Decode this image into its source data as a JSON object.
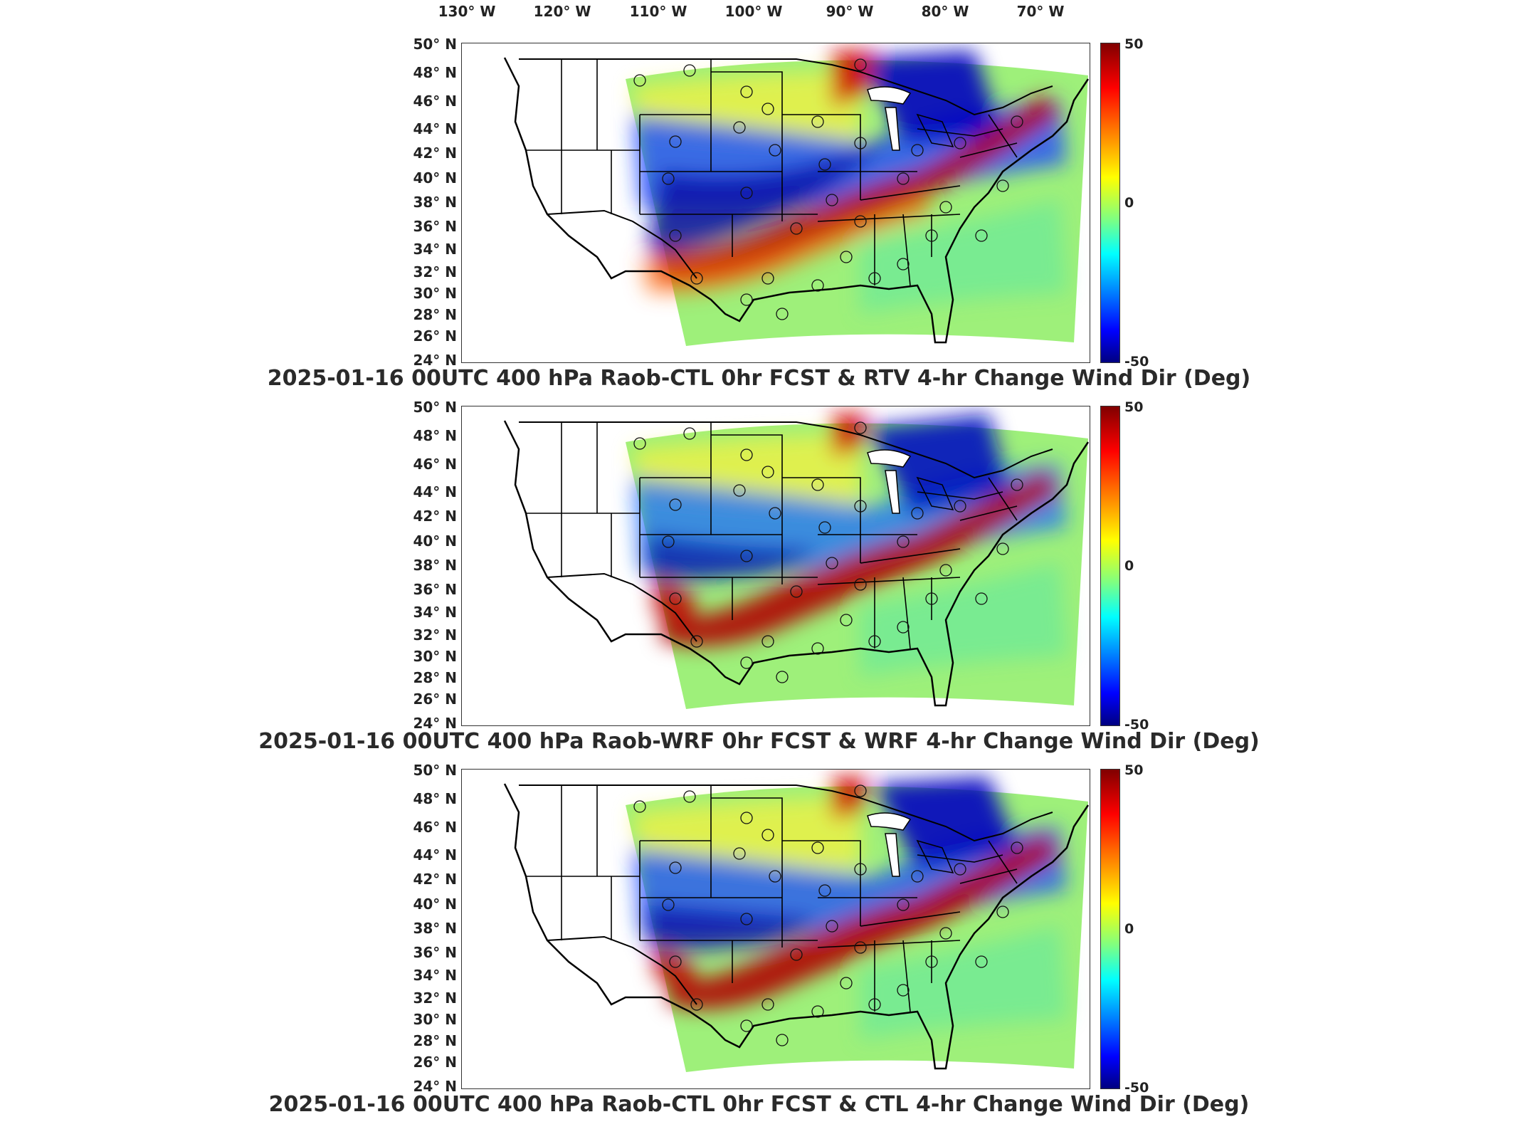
{
  "longitude_labels": [
    "130° W",
    "120° W",
    "110° W",
    "100° W",
    "90° W",
    "80° W",
    "70° W"
  ],
  "latitude_labels": [
    "50° N",
    "48° N",
    "46° N",
    "44° N",
    "42° N",
    "40° N",
    "38° N",
    "36° N",
    "34° N",
    "32° N",
    "30° N",
    "28° N",
    "26° N",
    "24° N"
  ],
  "colorbar": {
    "max_label": "50",
    "mid_label": "0",
    "min_label": "-50",
    "colors": [
      "#800000",
      "#ff0000",
      "#ff8000",
      "#ffff00",
      "#80ff80",
      "#00ffff",
      "#0080ff",
      "#0000ff",
      "#000080"
    ]
  },
  "panels": [
    {
      "title": "2025-01-16 00UTC 400 hPa Raob-CTL 0hr FCST & RTV 4-hr Change Wind Dir (Deg)"
    },
    {
      "title": "2025-01-16 00UTC 400 hPa Raob-WRF 0hr FCST & WRF 4-hr Change Wind Dir (Deg)"
    },
    {
      "title": "2025-01-16 00UTC 400 hPa Raob-CTL 0hr FCST & CTL 4-hr Change Wind Dir (Deg)"
    }
  ]
}
